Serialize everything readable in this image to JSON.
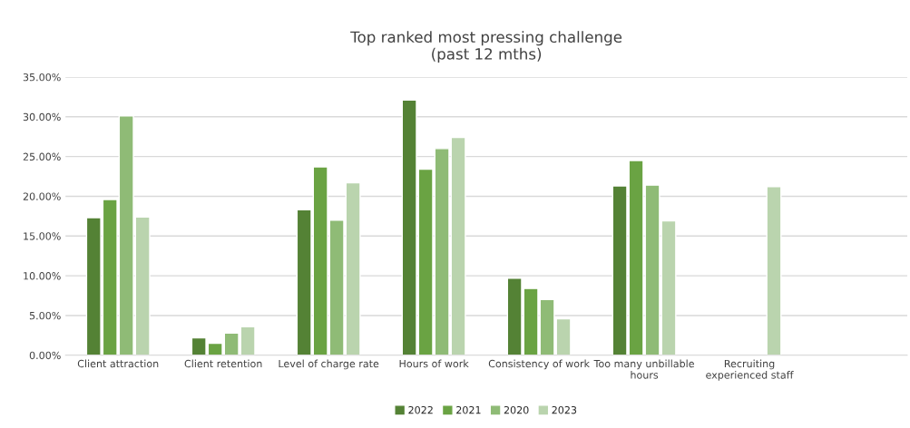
{
  "chart_data": {
    "type": "bar",
    "title": "Top ranked most pressing challenge\n(past 12 mths)",
    "categories": [
      "Client attraction",
      "Client retention",
      "Level of charge rate",
      "Hours of work",
      "Consistency of work",
      "Too many unbillable\nhours",
      "Recruiting\nexperienced staff",
      null
    ],
    "series": [
      {
        "name": "2022",
        "color": "#548235",
        "values": [
          17.3,
          2.2,
          18.3,
          32.1,
          9.7,
          21.3,
          null,
          null
        ]
      },
      {
        "name": "2021",
        "color": "#6aa343",
        "values": [
          19.6,
          1.5,
          23.7,
          23.4,
          8.4,
          24.5,
          null,
          null
        ]
      },
      {
        "name": "2020",
        "color": "#8fbb76",
        "values": [
          30.1,
          2.8,
          17.0,
          26.0,
          7.0,
          21.4,
          null,
          null
        ]
      },
      {
        "name": "2023",
        "color": "#bad4ae",
        "values": [
          17.4,
          3.6,
          21.7,
          27.4,
          4.6,
          16.9,
          21.2,
          null
        ]
      }
    ],
    "ylim": [
      0,
      35
    ],
    "yticks": [
      {
        "value": 0,
        "label": "0.00%"
      },
      {
        "value": 5,
        "label": "5.00%"
      },
      {
        "value": 10,
        "label": "10.00%"
      },
      {
        "value": 15,
        "label": "15.00%"
      },
      {
        "value": 20,
        "label": "20.00%"
      },
      {
        "value": 25,
        "label": "25.00%"
      },
      {
        "value": 30,
        "label": "30.00%"
      },
      {
        "value": 35,
        "label": "35.00%"
      }
    ],
    "grid": "y",
    "legend": "bottom"
  }
}
